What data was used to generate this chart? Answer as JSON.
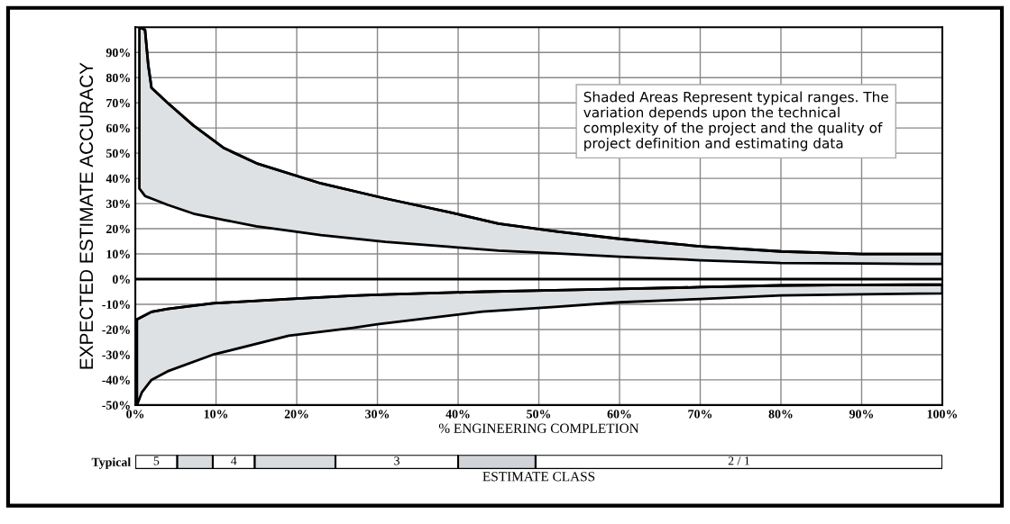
{
  "chart_data": [
    {
      "type": "area",
      "ylabel": "EXPECTED ESTIMATE ACCURACY",
      "xlabel": "% ENGINEERING COMPLETION",
      "annotations": [
        "Shaded Areas Represent typical ranges. The\nvariation depends upon the technical\ncomplexity of the project and the quality of\nproject definition and estimating data"
      ],
      "xlim": [
        0,
        100
      ],
      "ylim": [
        -50,
        100
      ],
      "xticks": [
        {
          "value": 0,
          "label": "0%"
        },
        {
          "value": 10,
          "label": "10%"
        },
        {
          "value": 20,
          "label": "20%"
        },
        {
          "value": 30,
          "label": "30%"
        },
        {
          "value": 40,
          "label": "40%"
        },
        {
          "value": 50,
          "label": "50%"
        },
        {
          "value": 60,
          "label": "60%"
        },
        {
          "value": 70,
          "label": "70%"
        },
        {
          "value": 80,
          "label": "80%"
        },
        {
          "value": 90,
          "label": "90%"
        },
        {
          "value": 100,
          "label": "100%"
        }
      ],
      "yticks": [
        {
          "value": -50,
          "label": "-50%"
        },
        {
          "value": -40,
          "label": "-40%"
        },
        {
          "value": -30,
          "label": "-30%"
        },
        {
          "value": -20,
          "label": "-20%"
        },
        {
          "value": -10,
          "label": "-10%"
        },
        {
          "value": 0,
          "label": "0%"
        },
        {
          "value": 10,
          "label": "10%"
        },
        {
          "value": 20,
          "label": "20%"
        },
        {
          "value": 30,
          "label": "30%"
        },
        {
          "value": 40,
          "label": "40%"
        },
        {
          "value": 50,
          "label": "50%"
        },
        {
          "value": 60,
          "label": "60%"
        },
        {
          "value": 70,
          "label": "70%"
        },
        {
          "value": 80,
          "label": "80%"
        },
        {
          "value": 90,
          "label": "90%"
        }
      ],
      "grid": true,
      "ref_lines": [
        {
          "axis": "y",
          "value": 0,
          "color": "#000000"
        }
      ],
      "series": [
        {
          "type": "line",
          "color": "#000000",
          "x": [
            0.5,
            1.2,
            1.6,
            2,
            4,
            7.2,
            11,
            15,
            23,
            31,
            39,
            45,
            52,
            60,
            70,
            80,
            90,
            100
          ],
          "values": [
            100,
            99,
            85,
            76,
            70,
            61,
            52,
            46,
            38,
            32,
            26.5,
            22,
            19,
            16,
            13,
            11,
            10,
            10
          ],
          "upper": [
            100,
            99,
            85,
            76,
            70,
            61,
            52,
            46,
            38,
            32,
            26.5,
            22,
            19,
            16,
            13,
            11,
            10,
            10
          ],
          "lower": [
            36,
            33,
            32.5,
            32,
            29.5,
            26,
            23.5,
            21,
            17.5,
            14.8,
            12.8,
            11.3,
            10.2,
            8.9,
            7.5,
            6.4,
            6.2,
            6
          ]
        },
        {
          "type": "line",
          "color": "#000000",
          "x": [
            0.2,
            0.8,
            2,
            4,
            9.6,
            19,
            27,
            30,
            43,
            52,
            60,
            70,
            80,
            90,
            100
          ],
          "values": [
            -16,
            -15,
            -13,
            -11.8,
            -9.6,
            -7.9,
            -6.6,
            -6.2,
            -5,
            -4.4,
            -3.9,
            -3.2,
            -2.5,
            -2.3,
            -2.2
          ],
          "upper": [
            -16,
            -15,
            -13,
            -11.8,
            -9.6,
            -7.9,
            -6.6,
            -6.2,
            -5,
            -4.4,
            -3.9,
            -3.2,
            -2.5,
            -2.3,
            -2.2
          ],
          "lower": [
            -50,
            -45,
            -40,
            -36.6,
            -30,
            -22.5,
            -19.3,
            -17.9,
            -12.9,
            -11,
            -9.2,
            -7.9,
            -6.5,
            -6,
            -5.7
          ]
        }
      ]
    },
    {
      "type": "bar",
      "orientation": "horizontal",
      "stacked": true,
      "xlabel": "ESTIMATE CLASS",
      "categories": [
        "Typical"
      ],
      "xlim": [
        0,
        100
      ],
      "tick_labels": "y",
      "series": [
        {
          "name": "5",
          "color": "#ffffff",
          "values": [
            5.2
          ]
        },
        {
          "color": "#d8dcdf",
          "values": [
            4.4
          ]
        },
        {
          "name": "4",
          "color": "#ffffff",
          "values": [
            5.2
          ]
        },
        {
          "color": "#d8dcdf",
          "values": [
            10
          ]
        },
        {
          "name": "3",
          "color": "#ffffff",
          "values": [
            15.2
          ]
        },
        {
          "color": "#d0d4d8",
          "values": [
            9.6
          ]
        },
        {
          "name": "2 / 1",
          "color": "#ffffff",
          "values": [
            50.4
          ]
        }
      ]
    }
  ]
}
